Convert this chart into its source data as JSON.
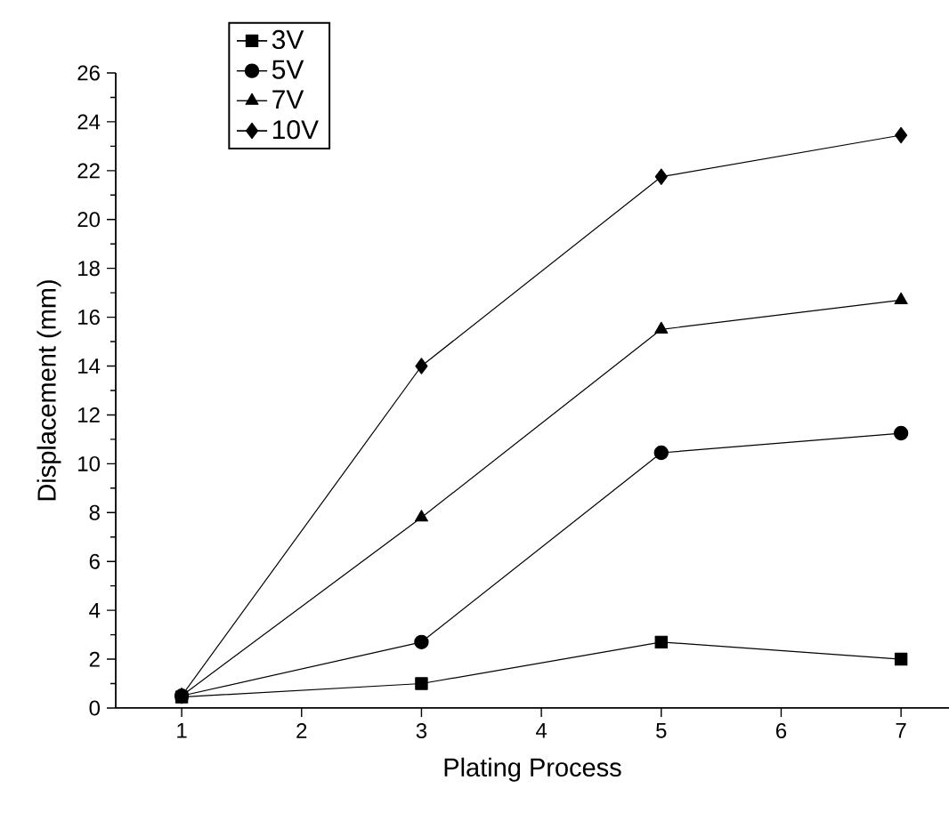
{
  "chart_data": {
    "type": "line",
    "xlabel": "Plating Process",
    "ylabel": "Displacement (mm)",
    "x": [
      1,
      3,
      5,
      7
    ],
    "series": [
      {
        "name": "3V",
        "color": "#000000",
        "marker": "square",
        "values": [
          0.45,
          1.0,
          2.7,
          2.0
        ]
      },
      {
        "name": "5V",
        "color": "#000000",
        "marker": "circle",
        "values": [
          0.5,
          2.7,
          10.45,
          11.25
        ]
      },
      {
        "name": "7V",
        "color": "#000000",
        "marker": "triangle",
        "values": [
          0.5,
          7.8,
          15.5,
          16.7
        ]
      },
      {
        "name": "10V",
        "color": "#000000",
        "marker": "diamond",
        "values": [
          0.5,
          14.0,
          21.75,
          23.45
        ]
      }
    ],
    "xlim": [
      0.45,
      7.4
    ],
    "xticks": [
      1,
      2,
      3,
      4,
      5,
      6,
      7
    ],
    "ylim": [
      0,
      26
    ],
    "yticks": [
      0,
      2,
      4,
      6,
      8,
      10,
      12,
      14,
      16,
      18,
      20,
      22,
      24,
      26
    ],
    "grid": false,
    "legend": "top left",
    "line_style": "solid"
  }
}
